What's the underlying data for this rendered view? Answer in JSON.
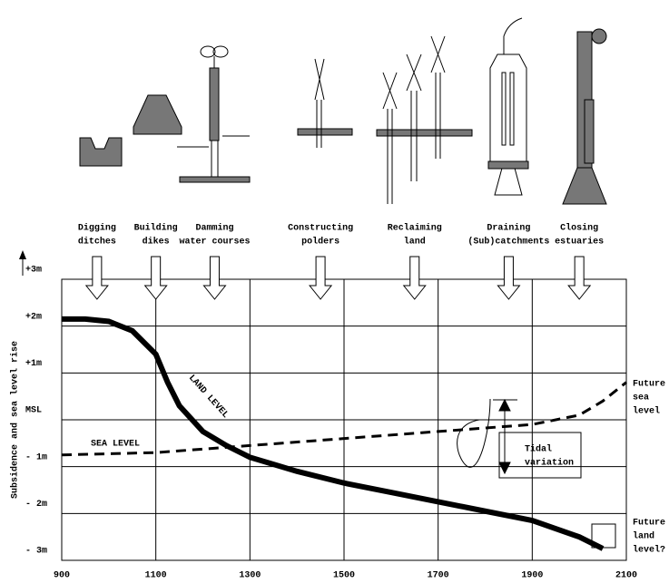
{
  "chart_data": {
    "type": "line",
    "y_label": "Subsidence and sea level rise",
    "xlim": [
      900,
      2100
    ],
    "xticks": [
      900,
      1100,
      1300,
      1500,
      1700,
      1900,
      2100
    ],
    "ylim": [
      -3,
      3
    ],
    "yticks": [
      {
        "value": 3,
        "label": "+3m"
      },
      {
        "value": 2,
        "label": "+2m"
      },
      {
        "value": 1,
        "label": "+1m"
      },
      {
        "value": 0,
        "label": "MSL"
      },
      {
        "value": -1,
        "label": "- 1m"
      },
      {
        "value": -2,
        "label": "- 2m"
      },
      {
        "value": -3,
        "label": "- 3m"
      }
    ],
    "grid": true,
    "series": [
      {
        "name": "LAND LEVEL",
        "color": "#000000",
        "x": [
          900,
          950,
          1000,
          1050,
          1100,
          1125,
          1150,
          1200,
          1250,
          1300,
          1400,
          1500,
          1600,
          1700,
          1800,
          1900,
          2000,
          2050
        ],
        "values": [
          2.15,
          2.15,
          2.1,
          1.9,
          1.4,
          0.8,
          0.3,
          -0.25,
          -0.55,
          -0.8,
          -1.1,
          -1.35,
          -1.55,
          -1.75,
          -1.95,
          -2.15,
          -2.5,
          -2.75
        ]
      },
      {
        "name": "SEA LEVEL",
        "color": "#000000",
        "x": [
          900,
          1100,
          1300,
          1500,
          1700,
          1900,
          2000,
          2050,
          2100
        ],
        "values": [
          -0.75,
          -0.7,
          -0.55,
          -0.4,
          -0.25,
          -0.1,
          0.1,
          0.4,
          0.8
        ]
      }
    ],
    "activities": [
      [
        "Digging",
        "ditches"
      ],
      [
        "Building",
        "dikes"
      ],
      [
        "Damming",
        "water courses"
      ],
      [
        "Constructing",
        "polders"
      ],
      [
        "Reclaiming",
        "land"
      ],
      [
        "Draining",
        "(Sub)catchments"
      ],
      [
        "Closing",
        "estuaries"
      ]
    ],
    "annotations": {
      "tidal": [
        "Tidal",
        "variation"
      ],
      "future_sea": [
        "Future",
        "sea",
        "level"
      ],
      "future_land": [
        "Future",
        "land",
        "level?"
      ]
    }
  }
}
